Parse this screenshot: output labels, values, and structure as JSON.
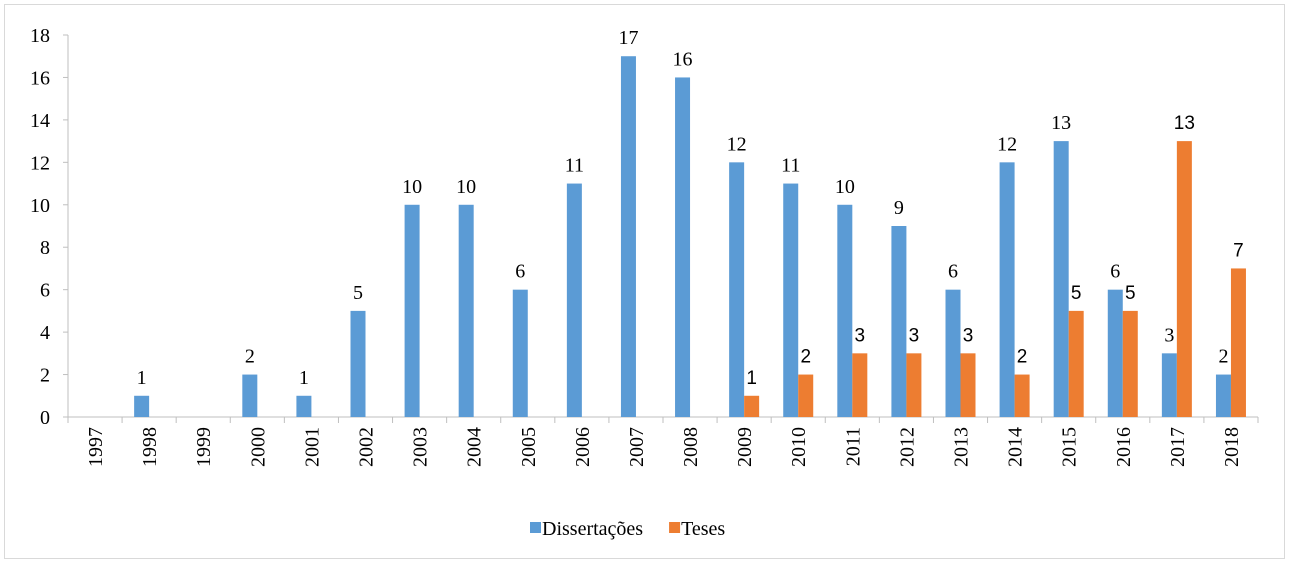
{
  "chart_data": {
    "type": "bar",
    "categories": [
      "1997",
      "1998",
      "1999",
      "2000",
      "2001",
      "2002",
      "2003",
      "2004",
      "2005",
      "2006",
      "2007",
      "2008",
      "2009",
      "2010",
      "2011",
      "2012",
      "2013",
      "2014",
      "2015",
      "2016",
      "2017",
      "2018"
    ],
    "series": [
      {
        "name": "Dissertações",
        "color": "#5b9bd5",
        "values": [
          null,
          1,
          null,
          2,
          1,
          5,
          10,
          10,
          6,
          11,
          17,
          16,
          12,
          11,
          10,
          9,
          6,
          12,
          13,
          6,
          3,
          2
        ]
      },
      {
        "name": "Teses",
        "color": "#ed7d31",
        "values": [
          null,
          null,
          null,
          null,
          null,
          null,
          null,
          null,
          null,
          null,
          null,
          null,
          1,
          2,
          3,
          3,
          3,
          2,
          5,
          5,
          13,
          7
        ]
      }
    ],
    "ylim": [
      0,
      18
    ],
    "yticks": [
      0,
      2,
      4,
      6,
      8,
      10,
      12,
      14,
      16,
      18
    ],
    "legend": "bottom"
  }
}
